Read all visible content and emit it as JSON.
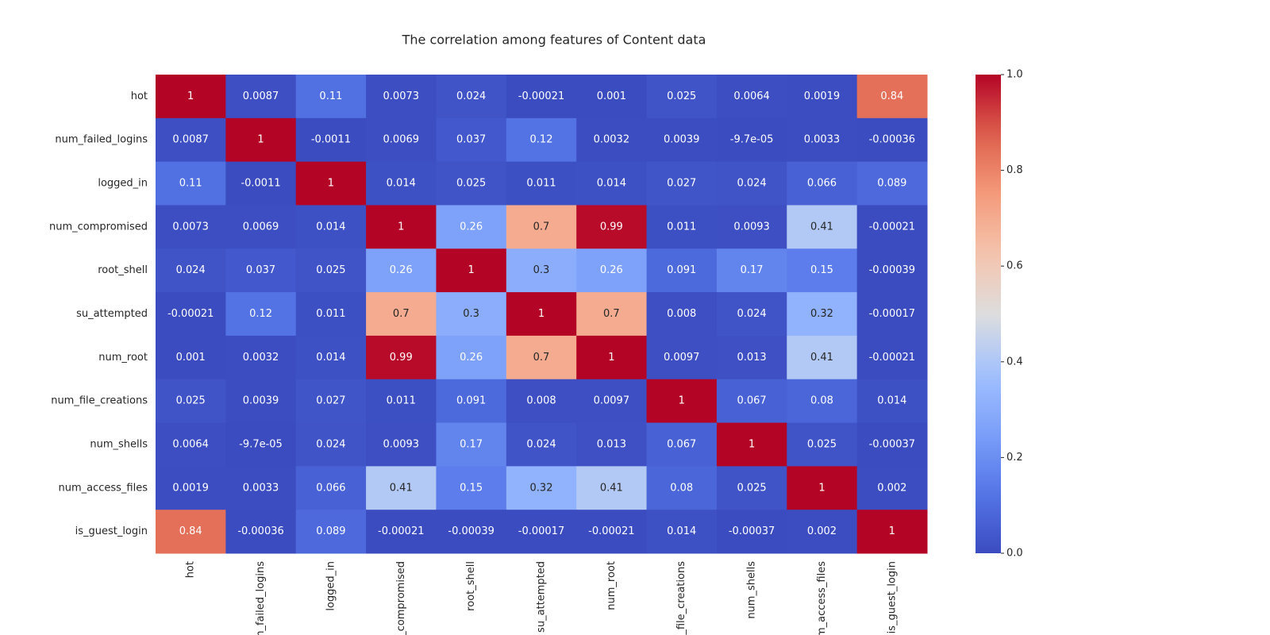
{
  "chart_data": {
    "type": "heatmap",
    "title": "The correlation among features of Content data",
    "colormap": "coolwarm",
    "x_categories": [
      "hot",
      "num_failed_logins",
      "logged_in",
      "num_compromised",
      "root_shell",
      "su_attempted",
      "num_root",
      "num_file_creations",
      "num_shells",
      "num_access_files",
      "is_guest_login"
    ],
    "y_categories": [
      "hot",
      "num_failed_logins",
      "logged_in",
      "num_compromised",
      "root_shell",
      "su_attempted",
      "num_root",
      "num_file_creations",
      "num_shells",
      "num_access_files",
      "is_guest_login"
    ],
    "values": [
      [
        1,
        0.0087,
        0.11,
        0.0073,
        0.024,
        -0.00021,
        0.001,
        0.025,
        0.0064,
        0.0019,
        0.84
      ],
      [
        0.0087,
        1,
        -0.0011,
        0.0069,
        0.037,
        0.12,
        0.0032,
        0.0039,
        -9.7e-05,
        0.0033,
        -0.00036
      ],
      [
        0.11,
        -0.0011,
        1,
        0.014,
        0.025,
        0.011,
        0.014,
        0.027,
        0.024,
        0.066,
        0.089
      ],
      [
        0.0073,
        0.0069,
        0.014,
        1,
        0.26,
        0.7,
        0.99,
        0.011,
        0.0093,
        0.41,
        -0.00021
      ],
      [
        0.024,
        0.037,
        0.025,
        0.26,
        1,
        0.3,
        0.26,
        0.091,
        0.17,
        0.15,
        -0.00039
      ],
      [
        -0.00021,
        0.12,
        0.011,
        0.7,
        0.3,
        1,
        0.7,
        0.008,
        0.024,
        0.32,
        -0.00017
      ],
      [
        0.001,
        0.0032,
        0.014,
        0.99,
        0.26,
        0.7,
        1,
        0.0097,
        0.013,
        0.41,
        -0.00021
      ],
      [
        0.025,
        0.0039,
        0.027,
        0.011,
        0.091,
        0.008,
        0.0097,
        1,
        0.067,
        0.08,
        0.014
      ],
      [
        0.0064,
        -9.7e-05,
        0.024,
        0.0093,
        0.17,
        0.024,
        0.013,
        0.067,
        1,
        0.025,
        -0.00037
      ],
      [
        0.0019,
        0.0033,
        0.066,
        0.41,
        0.15,
        0.32,
        0.41,
        0.08,
        0.025,
        1,
        0.002
      ],
      [
        0.84,
        -0.00036,
        0.089,
        -0.00021,
        -0.00039,
        -0.00017,
        -0.00021,
        0.014,
        -0.00037,
        0.002,
        1
      ]
    ],
    "value_labels": [
      [
        "1",
        "0.0087",
        "0.11",
        "0.0073",
        "0.024",
        "-0.00021",
        "0.001",
        "0.025",
        "0.0064",
        "0.0019",
        "0.84"
      ],
      [
        "0.0087",
        "1",
        "-0.0011",
        "0.0069",
        "0.037",
        "0.12",
        "0.0032",
        "0.0039",
        "-9.7e-05",
        "0.0033",
        "-0.00036"
      ],
      [
        "0.11",
        "-0.0011",
        "1",
        "0.014",
        "0.025",
        "0.011",
        "0.014",
        "0.027",
        "0.024",
        "0.066",
        "0.089"
      ],
      [
        "0.0073",
        "0.0069",
        "0.014",
        "1",
        "0.26",
        "0.7",
        "0.99",
        "0.011",
        "0.0093",
        "0.41",
        "-0.00021"
      ],
      [
        "0.024",
        "0.037",
        "0.025",
        "0.26",
        "1",
        "0.3",
        "0.26",
        "0.091",
        "0.17",
        "0.15",
        "-0.00039"
      ],
      [
        "-0.00021",
        "0.12",
        "0.011",
        "0.7",
        "0.3",
        "1",
        "0.7",
        "0.008",
        "0.024",
        "0.32",
        "-0.00017"
      ],
      [
        "0.001",
        "0.0032",
        "0.014",
        "0.99",
        "0.26",
        "0.7",
        "1",
        "0.0097",
        "0.013",
        "0.41",
        "-0.00021"
      ],
      [
        "0.025",
        "0.0039",
        "0.027",
        "0.011",
        "0.091",
        "0.008",
        "0.0097",
        "1",
        "0.067",
        "0.08",
        "0.014"
      ],
      [
        "0.0064",
        "-9.7e-05",
        "0.024",
        "0.0093",
        "0.17",
        "0.024",
        "0.013",
        "0.067",
        "1",
        "0.025",
        "-0.00037"
      ],
      [
        "0.0019",
        "0.0033",
        "0.066",
        "0.41",
        "0.15",
        "0.32",
        "0.41",
        "0.08",
        "0.025",
        "1",
        "0.002"
      ],
      [
        "0.84",
        "-0.00036",
        "0.089",
        "-0.00021",
        "-0.00039",
        "-0.00017",
        "-0.00021",
        "0.014",
        "-0.00037",
        "0.002",
        "1"
      ]
    ],
    "zlim": [
      0,
      1
    ],
    "zticks": [
      {
        "value": 0,
        "label": "0.0"
      },
      0.2,
      0.4,
      0.6,
      0.8,
      {
        "value": 1,
        "label": "1.0"
      }
    ]
  }
}
